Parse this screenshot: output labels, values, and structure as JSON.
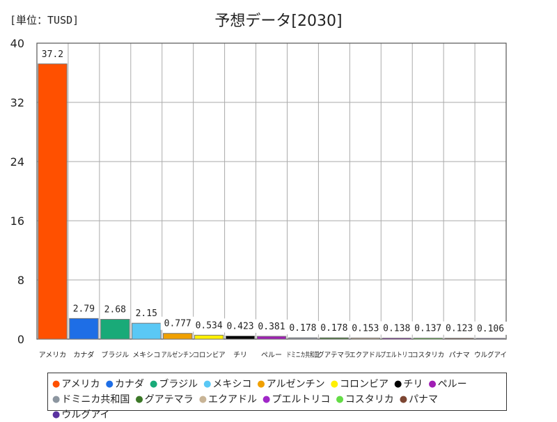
{
  "unit_label": "[単位：TUSD]",
  "title": "予想データ[2030]",
  "chart_data": {
    "type": "bar",
    "title": "予想データ[2030]",
    "ylabel": "[単位：TUSD]",
    "ylim": [
      0,
      40
    ],
    "yticks": [
      0,
      8,
      16,
      24,
      32,
      40
    ],
    "grid": true,
    "legend_position": "bottom",
    "categories": [
      "アメリカ",
      "カナダ",
      "ブラジル",
      "メキシコ",
      "アルゼンチン",
      "コロンビア",
      "チリ",
      "ペルー",
      "ドミニカ共和国",
      "グアテマラ",
      "エクアドル",
      "プエルトリコ",
      "コスタリカ",
      "パナマ",
      "ウルグアイ"
    ],
    "values": [
      37.2,
      2.79,
      2.68,
      2.15,
      0.777,
      0.534,
      0.423,
      0.381,
      0.178,
      0.178,
      0.153,
      0.138,
      0.137,
      0.123,
      0.106
    ],
    "value_labels": [
      "37.2",
      "2.79",
      "2.68",
      "2.15",
      "0.777",
      "0.534",
      "0.423",
      "0.381",
      "0.178",
      "0.178",
      "0.153",
      "0.138",
      "0.137",
      "0.123",
      "0.106"
    ],
    "colors": [
      "#ff5000",
      "#1e6ee6",
      "#19aa78",
      "#5ac8f5",
      "#f0a000",
      "#fff000",
      "#000000",
      "#a01eb4",
      "#8c96a0",
      "#3c7828",
      "#c8b496",
      "#a028c8",
      "#64dc46",
      "#7d4632",
      "#5a32a0"
    ]
  },
  "legend": {
    "bullet": "●",
    "items": [
      "アメリカ",
      "カナダ",
      "ブラジル",
      "メキシコ",
      "アルゼンチン",
      "コロンビア",
      "チリ",
      "ペルー",
      "ドミニカ共和国",
      "グアテマラ",
      "エクアドル",
      "プエルトリコ",
      "コスタリカ",
      "パナマ",
      "ウルグアイ"
    ]
  }
}
